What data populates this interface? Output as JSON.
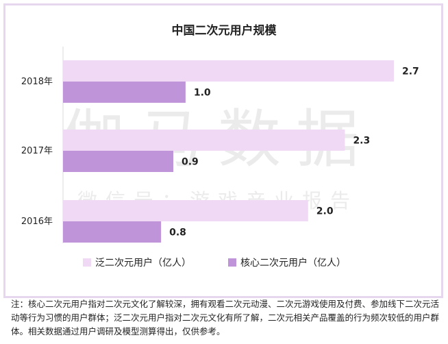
{
  "chart_data": {
    "type": "bar",
    "orientation": "horizontal",
    "title": "中国二次元用户规模",
    "categories": [
      "2018年",
      "2017年",
      "2016年"
    ],
    "series": [
      {
        "name": "泛二次元用户（亿人）",
        "values": [
          2.7,
          2.3,
          2.0
        ],
        "color": "#efd9f5"
      },
      {
        "name": "核心二次元用户（亿人）",
        "values": [
          1.0,
          0.9,
          0.8
        ],
        "color": "#bf94d8"
      }
    ],
    "value_labels": [
      [
        "2.7",
        "1.0"
      ],
      [
        "2.3",
        "0.9"
      ],
      [
        "2.0",
        "0.8"
      ]
    ],
    "xlim": [
      0,
      2.7
    ],
    "grid": false,
    "legend_position": "bottom-left"
  },
  "watermark": {
    "main": "伽马数据",
    "sub": "微信号：游戏产业报告"
  },
  "footnote": "注：核心二次元用户指对二次元文化了解较深，拥有观看二次元动漫、二次元游戏使用及付费、参加线下二次元活动等行为习惯的用户群体；泛二次元用户指对二次元文化有所了解，二次元相关产品覆盖的行为频次较低的用户群体。相关数据通过用户调研及模型测算得出，仅供参考。",
  "colors": {
    "frame": "#e6d7ee",
    "axis": "#d9d9d9",
    "text": "#222222",
    "watermark": "#bdbdbd"
  }
}
